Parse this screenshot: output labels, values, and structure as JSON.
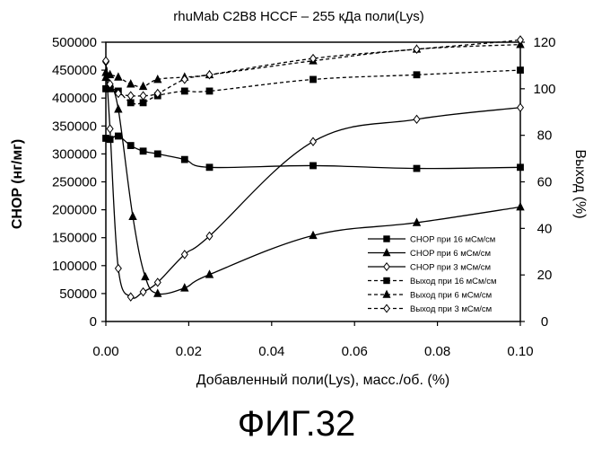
{
  "chart_data": {
    "type": "line",
    "title": "rhuMab C2B8 HCCF – 255 кДа поли(Lys)",
    "xlabel": "Добавленный поли(Lys), масс./об. (%)",
    "ylabel_left": "CHOP (нг/мг)",
    "ylabel_right": "Выход (%)",
    "xlim": [
      0,
      0.1
    ],
    "ylim_left": [
      0,
      500000
    ],
    "ylim_right": [
      0,
      120
    ],
    "xticks": [
      "0.00",
      "0.02",
      "0.04",
      "0.06",
      "0.08",
      "0.10"
    ],
    "yticks_left": [
      "0",
      "50000",
      "100000",
      "150000",
      "200000",
      "250000",
      "300000",
      "350000",
      "400000",
      "450000",
      "500000"
    ],
    "yticks_right": [
      "0",
      "20",
      "40",
      "60",
      "80",
      "100",
      "120"
    ],
    "legend_position": "bottom-right",
    "series": [
      {
        "name": "CHOP при 16 мСм/см",
        "axis": "left",
        "marker": "square",
        "dash": "solid",
        "x": [
          0,
          0.001,
          0.003,
          0.006,
          0.009,
          0.0125,
          0.019,
          0.025,
          0.05,
          0.075,
          0.1
        ],
        "y": [
          328000,
          326000,
          332000,
          315000,
          305000,
          300000,
          290000,
          276000,
          279000,
          274000,
          276000
        ]
      },
      {
        "name": "CHOP при 6 мСм/см",
        "axis": "left",
        "marker": "triangle",
        "dash": "solid",
        "x": [
          0,
          0.001,
          0.003,
          0.0065,
          0.0095,
          0.0125,
          0.019,
          0.025,
          0.05,
          0.075,
          0.1
        ],
        "y": [
          437000,
          425000,
          380000,
          188000,
          80000,
          50000,
          60000,
          84000,
          154000,
          177000,
          205000
        ]
      },
      {
        "name": "CHOP при 3 мСм/см",
        "axis": "left",
        "marker": "diamond",
        "dash": "solid",
        "x": [
          0,
          0.001,
          0.003,
          0.006,
          0.009,
          0.0125,
          0.019,
          0.025,
          0.05,
          0.075,
          0.1
        ],
        "y": [
          465000,
          345000,
          95000,
          44000,
          53000,
          70000,
          120000,
          153000,
          322000,
          362000,
          383000
        ]
      },
      {
        "name": "Выход при 16 мСм/см",
        "axis": "right",
        "marker": "square",
        "dash": "dashed",
        "x": [
          0,
          0.001,
          0.003,
          0.006,
          0.009,
          0.0125,
          0.019,
          0.025,
          0.05,
          0.075,
          0.1
        ],
        "y": [
          100,
          100,
          99,
          94,
          94,
          97,
          99,
          99,
          104,
          106,
          108
        ]
      },
      {
        "name": "Выход при 6 мСм/см",
        "axis": "right",
        "marker": "triangle",
        "dash": "dashed",
        "x": [
          0,
          0.001,
          0.003,
          0.006,
          0.009,
          0.0125,
          0.019,
          0.025,
          0.05,
          0.075,
          0.1
        ],
        "y": [
          107,
          106,
          105,
          102,
          101,
          104,
          105,
          106,
          112,
          117,
          119
        ]
      },
      {
        "name": "Выход при 3 мСм/см",
        "axis": "right",
        "marker": "diamond",
        "dash": "dashed",
        "x": [
          0,
          0.001,
          0.003,
          0.006,
          0.009,
          0.0125,
          0.019,
          0.025,
          0.05,
          0.075,
          0.1
        ],
        "y": [
          112,
          102,
          98,
          97,
          97,
          98,
          104,
          106,
          113,
          117,
          121
        ]
      }
    ]
  },
  "caption": "ФИГ.32"
}
